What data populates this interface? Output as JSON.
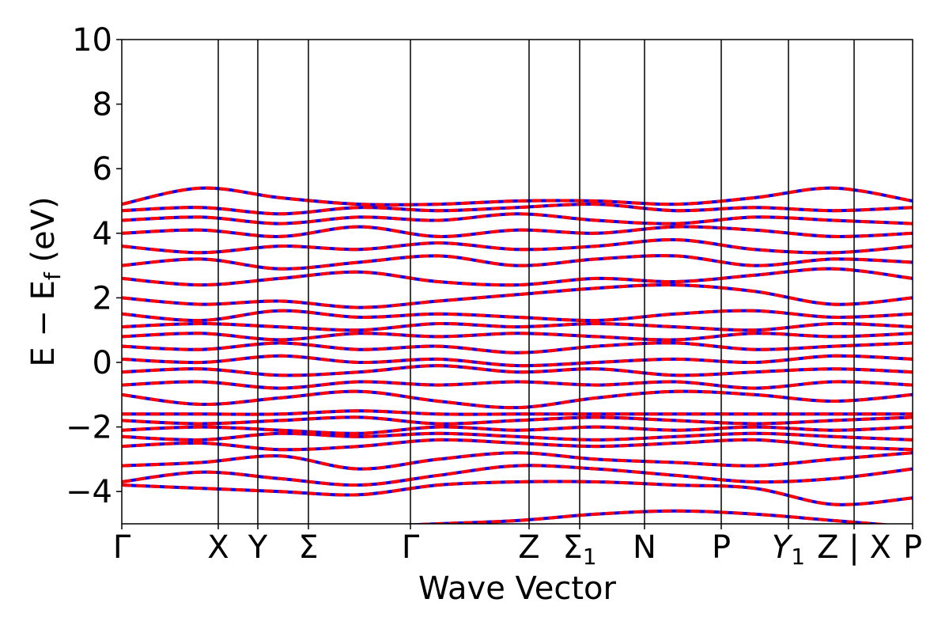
{
  "chart_data": {
    "type": "line",
    "xlabel": "Wave Vector",
    "ylabel": "E − E",
    "ylabel_sub": "f",
    "ylabel_unit": " (eV)",
    "ylim": [
      -5,
      10
    ],
    "yticks": [
      -4,
      -2,
      0,
      2,
      4,
      6,
      8,
      10
    ],
    "ytick_labels": [
      "−4",
      "−2",
      "0",
      "2",
      "4",
      "6",
      "8",
      "10"
    ],
    "grid": false,
    "legend": "none",
    "x_range": [
      0,
      100
    ],
    "kpoints": [
      {
        "x": 0,
        "label": "Γ"
      },
      {
        "x": 12.2,
        "label": "X"
      },
      {
        "x": 17.2,
        "label": "Y"
      },
      {
        "x": 23.6,
        "label": "Σ"
      },
      {
        "x": 36.5,
        "label": "Γ"
      },
      {
        "x": 51.5,
        "label": "Z"
      },
      {
        "x": 57.9,
        "label": "Σ",
        "sub": "1"
      },
      {
        "x": 66.1,
        "label": "N"
      },
      {
        "x": 75.8,
        "label": "P"
      },
      {
        "x": 84.3,
        "label": "Y",
        "sub": "1",
        "italic": true
      },
      {
        "x": 92.6,
        "label": "Z | X"
      },
      {
        "x": 100,
        "label": "P"
      }
    ],
    "bands": [
      [
        -5.5,
        -5.4,
        -5.2,
        -5.1,
        -5.0,
        -4.9,
        -4.7,
        -4.6,
        -4.7,
        -4.9,
        -5.1
      ],
      [
        -3.8,
        -3.9,
        -4.0,
        -4.1,
        -3.8,
        -3.7,
        -3.7,
        -3.8,
        -3.9,
        -4.4,
        -4.2
      ],
      [
        -3.7,
        -3.4,
        -3.6,
        -3.8,
        -3.5,
        -3.2,
        -3.3,
        -3.5,
        -3.7,
        -3.6,
        -3.3
      ],
      [
        -3.2,
        -3.1,
        -2.9,
        -3.3,
        -3.0,
        -2.8,
        -3.0,
        -3.1,
        -3.2,
        -3.0,
        -2.8
      ],
      [
        -2.6,
        -2.5,
        -2.7,
        -2.6,
        -2.4,
        -2.5,
        -2.6,
        -2.5,
        -2.4,
        -2.6,
        -2.7
      ],
      [
        -2.3,
        -2.4,
        -2.2,
        -2.3,
        -2.2,
        -2.3,
        -2.4,
        -2.3,
        -2.2,
        -2.3,
        -2.4
      ],
      [
        -2.1,
        -2.0,
        -2.1,
        -2.2,
        -2.0,
        -2.1,
        -2.0,
        -2.1,
        -2.0,
        -2.1,
        -2.0
      ],
      [
        -1.8,
        -1.9,
        -1.8,
        -1.7,
        -1.9,
        -1.8,
        -1.7,
        -1.8,
        -1.9,
        -1.8,
        -1.7
      ],
      [
        -1.6,
        -1.6,
        -1.6,
        -1.5,
        -1.6,
        -1.6,
        -1.6,
        -1.6,
        -1.6,
        -1.6,
        -1.6
      ],
      [
        -1.0,
        -1.3,
        -1.1,
        -0.9,
        -1.2,
        -1.4,
        -1.1,
        -0.9,
        -1.0,
        -1.2,
        -1.0
      ],
      [
        -0.7,
        -0.6,
        -0.8,
        -0.6,
        -0.7,
        -0.6,
        -0.7,
        -0.6,
        -0.8,
        -0.6,
        -0.7
      ],
      [
        -0.3,
        -0.2,
        -0.4,
        -0.3,
        -0.1,
        -0.3,
        -0.2,
        -0.4,
        -0.3,
        -0.2,
        -0.3
      ],
      [
        0.1,
        0.0,
        0.2,
        0.0,
        0.1,
        -0.1,
        0.0,
        0.1,
        0.0,
        0.2,
        0.1
      ],
      [
        0.5,
        0.4,
        0.6,
        0.4,
        0.5,
        0.3,
        0.5,
        0.6,
        0.4,
        0.5,
        0.6
      ],
      [
        0.8,
        0.9,
        0.7,
        0.9,
        0.8,
        0.9,
        0.8,
        0.7,
        0.9,
        0.8,
        0.9
      ],
      [
        1.1,
        1.2,
        1.1,
        1.0,
        1.2,
        1.1,
        1.2,
        1.1,
        1.0,
        1.2,
        1.1
      ],
      [
        1.5,
        1.3,
        1.6,
        1.4,
        1.5,
        1.4,
        1.3,
        1.5,
        1.6,
        1.4,
        1.5
      ],
      [
        2.0,
        1.8,
        1.9,
        1.7,
        1.9,
        2.1,
        2.3,
        2.4,
        2.2,
        1.8,
        2.0
      ],
      [
        2.6,
        2.4,
        2.6,
        2.8,
        2.5,
        2.4,
        2.6,
        2.5,
        2.7,
        2.9,
        2.6
      ],
      [
        3.0,
        3.2,
        2.9,
        3.1,
        3.3,
        3.0,
        3.2,
        3.3,
        3.0,
        3.2,
        3.1
      ],
      [
        3.6,
        3.4,
        3.6,
        3.5,
        3.7,
        3.5,
        3.6,
        3.8,
        3.5,
        3.4,
        3.6
      ],
      [
        4.0,
        4.1,
        3.9,
        4.2,
        3.9,
        4.1,
        4.0,
        4.2,
        4.1,
        3.9,
        4.0
      ],
      [
        4.4,
        4.5,
        4.3,
        4.5,
        4.4,
        4.6,
        4.4,
        4.3,
        4.5,
        4.4,
        4.3
      ],
      [
        4.7,
        4.8,
        4.6,
        4.8,
        4.7,
        4.8,
        4.9,
        4.7,
        4.8,
        4.7,
        4.8
      ],
      [
        4.9,
        5.4,
        5.1,
        4.9,
        4.9,
        5.0,
        5.0,
        4.9,
        5.1,
        5.4,
        5.0
      ]
    ],
    "colors": {
      "primary": "#ff0000",
      "secondary": "#0000ff"
    }
  }
}
